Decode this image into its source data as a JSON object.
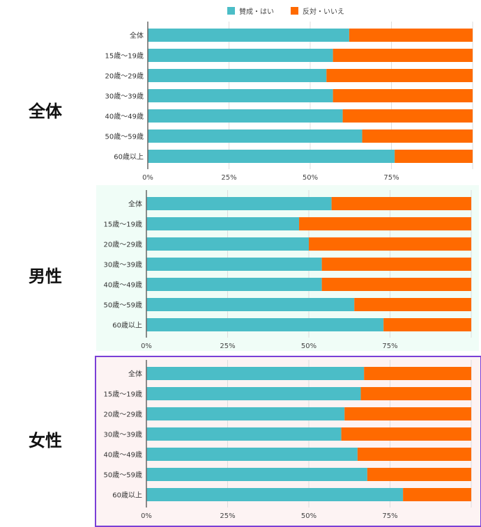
{
  "colors": {
    "agree": "#4bbdc7",
    "disagree": "#ff6a00",
    "grid": "#dddddd",
    "axis": "#666666",
    "highlight": "#7a3fd6"
  },
  "legend": {
    "agree": "賛成・はい",
    "disagree": "反対・いいえ"
  },
  "chart_data": [
    {
      "type": "bar",
      "group": "全体",
      "orientation": "horizontal-stacked-100",
      "categories": [
        "全体",
        "15歳～19歳",
        "20歳～29歳",
        "30歳～39歳",
        "40歳～49歳",
        "50歳～59歳",
        "60歳以上"
      ],
      "series": [
        {
          "name": "賛成・はい",
          "values": [
            62,
            57,
            55,
            57,
            60,
            66,
            76
          ]
        },
        {
          "name": "反対・いいえ",
          "values": [
            38,
            43,
            45,
            43,
            40,
            34,
            24
          ]
        }
      ],
      "xticks": [
        "0%",
        "25%",
        "50%",
        "75%"
      ],
      "xlim": [
        0,
        100
      ],
      "background": "#ffffff",
      "highlighted": false
    },
    {
      "type": "bar",
      "group": "男性",
      "orientation": "horizontal-stacked-100",
      "categories": [
        "全体",
        "15歳～19歳",
        "20歳～29歳",
        "30歳～39歳",
        "40歳～49歳",
        "50歳～59歳",
        "60歳以上"
      ],
      "series": [
        {
          "name": "賛成・はい",
          "values": [
            57,
            47,
            50,
            54,
            54,
            64,
            73
          ]
        },
        {
          "name": "反対・いいえ",
          "values": [
            43,
            53,
            50,
            46,
            46,
            36,
            27
          ]
        }
      ],
      "xticks": [
        "0%",
        "25%",
        "50%",
        "75%"
      ],
      "xlim": [
        0,
        100
      ],
      "background": "#f0fdf7",
      "highlighted": false
    },
    {
      "type": "bar",
      "group": "女性",
      "orientation": "horizontal-stacked-100",
      "categories": [
        "全体",
        "15歳～19歳",
        "20歳～29歳",
        "30歳～39歳",
        "40歳～49歳",
        "50歳～59歳",
        "60歳以上"
      ],
      "series": [
        {
          "name": "賛成・はい",
          "values": [
            67,
            66,
            61,
            60,
            65,
            68,
            79
          ]
        },
        {
          "name": "反対・いいえ",
          "values": [
            33,
            34,
            39,
            40,
            35,
            32,
            21
          ]
        }
      ],
      "xticks": [
        "0%",
        "25%",
        "50%",
        "75%"
      ],
      "xlim": [
        0,
        100
      ],
      "background": "#fdf3f3",
      "highlighted": true
    }
  ]
}
